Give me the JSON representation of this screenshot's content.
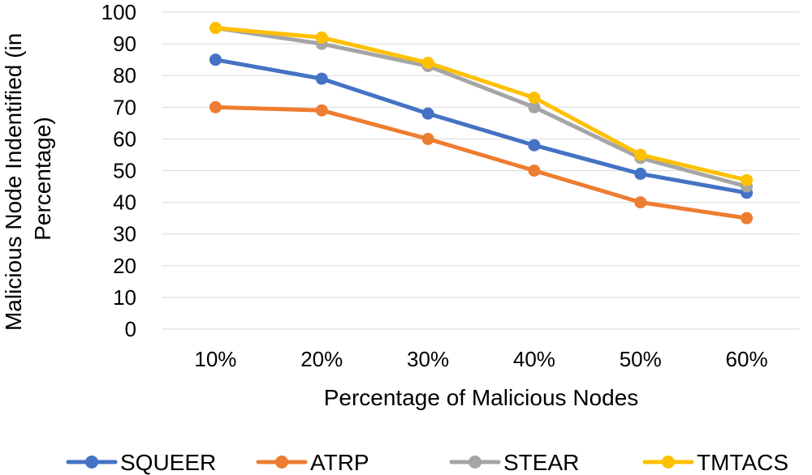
{
  "chart_data": {
    "type": "line",
    "title": "",
    "xlabel": "Percentage of Malicious Nodes",
    "ylabel_lines": [
      "Malicious Node Indentified (in",
      "Percentage)"
    ],
    "categories": [
      "10%",
      "20%",
      "30%",
      "40%",
      "50%",
      "60%"
    ],
    "ylim": [
      0,
      100
    ],
    "yticks": [
      0,
      10,
      20,
      30,
      40,
      50,
      60,
      70,
      80,
      90,
      100
    ],
    "grid": true,
    "legend_position": "bottom",
    "series": [
      {
        "name": "SQUEER",
        "color": "#4472c4",
        "values": [
          85,
          79,
          68,
          58,
          49,
          43
        ]
      },
      {
        "name": "ATRP",
        "color": "#ed7d31",
        "values": [
          70,
          69,
          60,
          50,
          40,
          35
        ]
      },
      {
        "name": "STEAR",
        "color": "#a5a5a5",
        "values": [
          95,
          90,
          83,
          70,
          54,
          45
        ]
      },
      {
        "name": "TMTACS",
        "color": "#ffc000",
        "values": [
          95,
          92,
          84,
          73,
          55,
          47
        ]
      }
    ]
  }
}
